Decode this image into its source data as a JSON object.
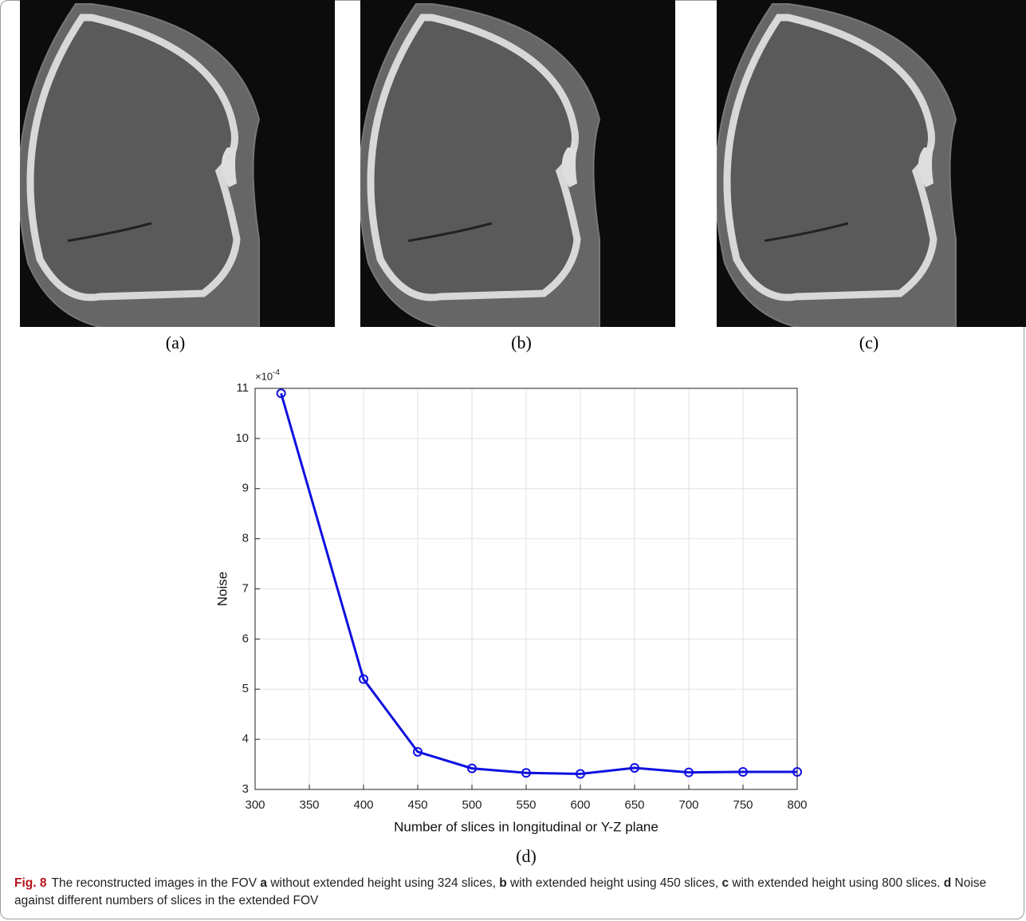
{
  "panels": [
    {
      "label": "(a)"
    },
    {
      "label": "(b)"
    },
    {
      "label": "(c)"
    }
  ],
  "chart_data": {
    "type": "line",
    "panel_label": "(d)",
    "x_label": "Number of slices in longitudinal or Y-Z plane",
    "y_label": "Noise",
    "y_exponent": "×10",
    "y_exponent_power": "-4",
    "x": [
      324,
      400,
      450,
      500,
      550,
      600,
      650,
      700,
      750,
      800
    ],
    "values": [
      10.9,
      5.2,
      3.75,
      3.42,
      3.33,
      3.31,
      3.43,
      3.34,
      3.35,
      3.35
    ],
    "color": "#1010e0",
    "xlim": [
      300,
      800
    ],
    "xticks": [
      300,
      350,
      400,
      450,
      500,
      550,
      600,
      650,
      700,
      750,
      800
    ],
    "ylim": [
      3,
      11
    ],
    "yticks": [
      3,
      4,
      5,
      6,
      7,
      8,
      9,
      10,
      11
    ],
    "grid": true
  },
  "caption": {
    "label": "Fig. 8",
    "runs": [
      {
        "text": "The reconstructed images in the FOV ",
        "bold": false
      },
      {
        "text": "a",
        "bold": true
      },
      {
        "text": " without extended height using 324 slices, ",
        "bold": false
      },
      {
        "text": "b",
        "bold": true
      },
      {
        "text": " with extended height using 450 slices, ",
        "bold": false
      },
      {
        "text": "c",
        "bold": true
      },
      {
        "text": " with extended height using 800 slices. ",
        "bold": false
      },
      {
        "text": "d",
        "bold": true
      },
      {
        "text": " Noise against different numbers of slices in the extended FOV",
        "bold": false
      }
    ]
  }
}
